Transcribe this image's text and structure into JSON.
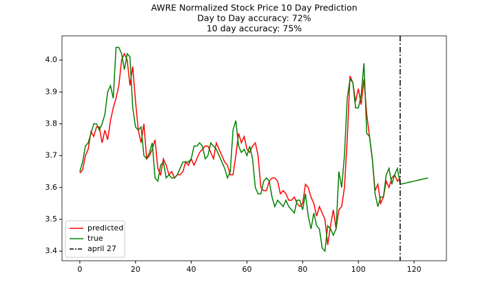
{
  "chart_data": {
    "type": "line",
    "title": "AWRE Normalized Stock Price 10 Day Prediction",
    "subtitle": "Day to Day accuracy: 72%",
    "subtitle2": "10 day accuracy: 75%",
    "x": [
      0,
      1,
      2,
      3,
      4,
      5,
      6,
      7,
      8,
      9,
      10,
      11,
      12,
      13,
      14,
      15,
      16,
      17,
      18,
      19,
      20,
      21,
      22,
      23,
      24,
      25,
      26,
      27,
      28,
      29,
      30,
      31,
      32,
      33,
      34,
      35,
      36,
      37,
      38,
      39,
      40,
      41,
      42,
      43,
      44,
      45,
      46,
      47,
      48,
      49,
      50,
      51,
      52,
      53,
      54,
      55,
      56,
      57,
      58,
      59,
      60,
      61,
      62,
      63,
      64,
      65,
      66,
      67,
      68,
      69,
      70,
      71,
      72,
      73,
      74,
      75,
      76,
      77,
      78,
      79,
      80,
      81,
      82,
      83,
      84,
      85,
      86,
      87,
      88,
      89,
      90,
      91,
      92,
      93,
      94,
      95,
      96,
      97,
      98,
      99,
      100,
      101,
      102,
      103,
      104,
      105,
      106,
      107,
      108,
      109,
      110,
      111,
      112,
      113,
      114,
      115,
      116,
      117,
      118,
      119,
      120,
      121,
      122,
      123,
      124,
      125
    ],
    "series": [
      {
        "name": "predicted",
        "color": "#ff0000",
        "values": [
          3.645,
          3.655,
          3.7,
          3.72,
          3.775,
          3.76,
          3.79,
          3.79,
          3.74,
          3.78,
          3.75,
          3.81,
          3.85,
          3.88,
          3.92,
          4.0,
          4.02,
          4.0,
          3.92,
          3.98,
          3.87,
          3.78,
          3.74,
          3.8,
          3.69,
          3.7,
          3.72,
          3.75,
          3.66,
          3.64,
          3.69,
          3.67,
          3.64,
          3.65,
          3.63,
          3.64,
          3.64,
          3.65,
          3.68,
          3.67,
          3.69,
          3.67,
          3.69,
          3.71,
          3.72,
          3.73,
          3.73,
          3.71,
          3.69,
          3.74,
          3.72,
          3.7,
          3.68,
          3.67,
          3.64,
          3.64,
          3.7,
          3.77,
          3.74,
          3.76,
          3.72,
          3.71,
          3.73,
          3.74,
          3.7,
          3.6,
          3.59,
          3.59,
          3.62,
          3.63,
          3.63,
          3.62,
          3.58,
          3.59,
          3.58,
          3.56,
          3.56,
          3.57,
          3.55,
          3.54,
          3.55,
          3.61,
          3.6,
          3.57,
          3.55,
          3.51,
          3.54,
          3.52,
          3.5,
          3.42,
          3.48,
          3.53,
          3.47,
          3.53,
          3.54,
          3.6,
          3.75,
          3.95,
          3.93,
          3.87,
          3.91,
          3.86,
          3.94,
          3.83,
          3.76,
          3.69,
          3.59,
          3.61,
          3.55,
          3.57,
          3.62,
          3.6,
          3.63,
          3.64,
          3.62,
          3.63,
          null,
          null,
          null,
          null,
          null,
          null,
          null,
          null,
          null,
          null
        ]
      },
      {
        "name": "true",
        "color": "#008000",
        "values": [
          3.65,
          3.68,
          3.73,
          3.74,
          3.77,
          3.8,
          3.8,
          3.78,
          3.8,
          3.83,
          3.9,
          3.92,
          3.88,
          4.04,
          4.04,
          4.02,
          3.97,
          4.02,
          4.01,
          3.85,
          3.79,
          3.78,
          3.79,
          3.7,
          3.69,
          3.71,
          3.74,
          3.63,
          3.62,
          3.67,
          3.68,
          3.63,
          3.64,
          3.63,
          3.63,
          3.64,
          3.66,
          3.68,
          3.68,
          3.68,
          3.69,
          3.73,
          3.73,
          3.74,
          3.73,
          3.69,
          3.7,
          3.74,
          3.73,
          3.72,
          3.7,
          3.68,
          3.66,
          3.63,
          3.65,
          3.78,
          3.81,
          3.73,
          3.71,
          3.72,
          3.7,
          3.73,
          3.69,
          3.6,
          3.58,
          3.58,
          3.62,
          3.63,
          3.62,
          3.57,
          3.54,
          3.56,
          3.55,
          3.54,
          3.56,
          3.54,
          3.53,
          3.52,
          3.56,
          3.56,
          3.53,
          3.58,
          3.51,
          3.47,
          3.52,
          3.48,
          3.47,
          3.41,
          3.4,
          3.48,
          3.47,
          3.45,
          3.47,
          3.65,
          3.6,
          3.7,
          3.88,
          3.94,
          3.93,
          3.85,
          3.85,
          3.89,
          3.99,
          3.77,
          3.76,
          3.69,
          3.58,
          3.54,
          3.57,
          3.57,
          3.64,
          3.66,
          3.61,
          3.64,
          3.66,
          3.61,
          3.612,
          3.614,
          3.616,
          3.618,
          3.62,
          3.622,
          3.624,
          3.626,
          3.628,
          3.63
        ]
      }
    ],
    "vlines": [
      {
        "name": "april 27",
        "x": 115,
        "color": "#000000",
        "style": "dashdot"
      }
    ],
    "xlim": [
      -6.4,
      131.6
    ],
    "ylim": [
      3.37,
      4.076
    ],
    "xticks": [
      0,
      20,
      40,
      60,
      80,
      100,
      120
    ],
    "yticks": [
      3.4,
      3.5,
      3.6,
      3.7,
      3.8,
      3.9,
      {
        "value": 4,
        "label": "4.0"
      }
    ],
    "grid": false,
    "legend": "lower left"
  }
}
